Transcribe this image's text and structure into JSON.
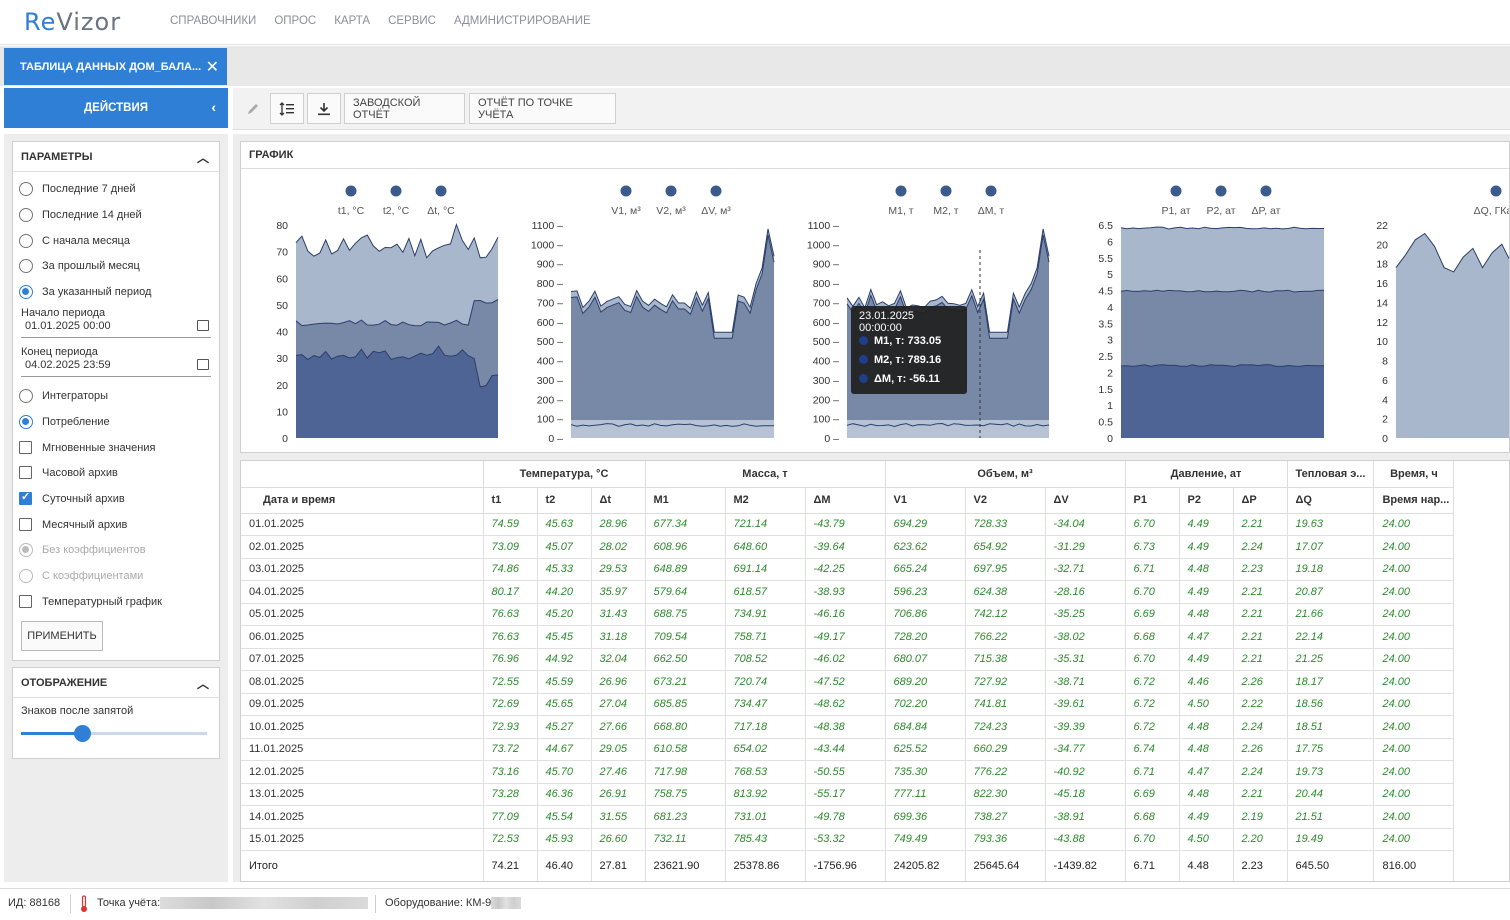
{
  "app": {
    "logo_re": "Re",
    "logo_rest": "Vizor"
  },
  "nav": [
    "Справочники",
    "Опрос",
    "Карта",
    "Сервис",
    "Администрирование"
  ],
  "tab": {
    "label": "Таблица данных ДОМ_БАЛА..."
  },
  "actions_label": "Действия",
  "toolbar": {
    "factory_report": "Заводской отчёт",
    "point_report": "Отчёт по точке учёта"
  },
  "params": {
    "title": "Параметры",
    "periods": [
      "Последние 7 дней",
      "Последние 14 дней",
      "С начала месяца",
      "За прошлый месяц",
      "За указанный период"
    ],
    "selected_period": 4,
    "start_label": "Начало периода",
    "start_value": "01.01.2025 00:00",
    "end_label": "Конец периода",
    "end_value": "04.02.2025 23:59",
    "mode": [
      "Интеграторы",
      "Потребление"
    ],
    "selected_mode": 1,
    "archives": [
      {
        "label": "Мгновенные значения",
        "checked": false
      },
      {
        "label": "Часовой архив",
        "checked": false
      },
      {
        "label": "Суточный архив",
        "checked": true
      },
      {
        "label": "Месячный архив",
        "checked": false
      }
    ],
    "coef": [
      "Без коэффициентов",
      "С коэффициентами"
    ],
    "temp_graph": "Температурный график",
    "apply": "Применить"
  },
  "display": {
    "title": "Отображение",
    "decimals_label": "Знаков после запятой",
    "decimals_value": 0.33
  },
  "chart_box_title": "График",
  "charts": [
    {
      "legend": [
        "t1, °C",
        "t2, °C",
        "Δt, °C"
      ],
      "ticks": [
        "80",
        "70",
        "60",
        "50",
        "40",
        "30",
        "20",
        "10",
        "0"
      ]
    },
    {
      "legend": [
        "V1, м³",
        "V2, м³",
        "ΔV, м³"
      ],
      "ticks": [
        "1100 –",
        "1000 –",
        "900 –",
        "800 –",
        "700 –",
        "600 –",
        "500 –",
        "400 –",
        "300 –",
        "200 –",
        "100 –",
        "0 –"
      ]
    },
    {
      "legend": [
        "M1, т",
        "M2, т",
        "ΔM, т"
      ],
      "ticks": [
        "1100 –",
        "1000 –",
        "900 –",
        "800 –",
        "700 –",
        "600 –",
        "500 –",
        "400 –",
        "300 –",
        "200 –",
        "100 –",
        "0 –"
      ]
    },
    {
      "legend": [
        "P1, ат",
        "P2, ат",
        "ΔP, ат"
      ],
      "ticks": [
        "6.5",
        "6",
        "5.5",
        "5",
        "4.5",
        "4",
        "3.5",
        "3",
        "2.5",
        "2",
        "1.5",
        "1",
        "0.5",
        "0"
      ]
    },
    {
      "legend": [
        "ΔQ, ГКал"
      ],
      "ticks": [
        "22",
        "20",
        "18",
        "16",
        "14",
        "12",
        "10",
        "8",
        "6",
        "4",
        "2",
        "0"
      ]
    }
  ],
  "tooltip": {
    "date": "23.01.2025 00:00:00",
    "lines": [
      "M1, т: 733.05",
      "M2, т: 789.16",
      "ΔM, т: -56.11"
    ]
  },
  "table": {
    "date_header": "Дата и время",
    "groups": [
      "Температура, °С",
      "Масса, т",
      "Объем, м³",
      "Давление, ат",
      "Тепловая э...",
      "Время, ч"
    ],
    "cols": [
      "t1",
      "t2",
      "Δt",
      "M1",
      "M2",
      "ΔM",
      "V1",
      "V2",
      "ΔV",
      "P1",
      "P2",
      "ΔP",
      "ΔQ",
      "Время нар..."
    ],
    "rows": [
      [
        "01.01.2025",
        "74.59",
        "45.63",
        "28.96",
        "677.34",
        "721.14",
        "-43.79",
        "694.29",
        "728.33",
        "-34.04",
        "6.70",
        "4.49",
        "2.21",
        "19.63",
        "24.00"
      ],
      [
        "02.01.2025",
        "73.09",
        "45.07",
        "28.02",
        "608.96",
        "648.60",
        "-39.64",
        "623.62",
        "654.92",
        "-31.29",
        "6.73",
        "4.49",
        "2.24",
        "17.07",
        "24.00"
      ],
      [
        "03.01.2025",
        "74.86",
        "45.33",
        "29.53",
        "648.89",
        "691.14",
        "-42.25",
        "665.24",
        "697.95",
        "-32.71",
        "6.71",
        "4.48",
        "2.23",
        "19.18",
        "24.00"
      ],
      [
        "04.01.2025",
        "80.17",
        "44.20",
        "35.97",
        "579.64",
        "618.57",
        "-38.93",
        "596.23",
        "624.38",
        "-28.16",
        "6.70",
        "4.49",
        "2.21",
        "20.87",
        "24.00"
      ],
      [
        "05.01.2025",
        "76.63",
        "45.20",
        "31.43",
        "688.75",
        "734.91",
        "-46.16",
        "706.86",
        "742.12",
        "-35.25",
        "6.69",
        "4.48",
        "2.21",
        "21.66",
        "24.00"
      ],
      [
        "06.01.2025",
        "76.63",
        "45.45",
        "31.18",
        "709.54",
        "758.71",
        "-49.17",
        "728.20",
        "766.22",
        "-38.02",
        "6.68",
        "4.47",
        "2.21",
        "22.14",
        "24.00"
      ],
      [
        "07.01.2025",
        "76.96",
        "44.92",
        "32.04",
        "662.50",
        "708.52",
        "-46.02",
        "680.07",
        "715.38",
        "-35.31",
        "6.70",
        "4.49",
        "2.21",
        "21.25",
        "24.00"
      ],
      [
        "08.01.2025",
        "72.55",
        "45.59",
        "26.96",
        "673.21",
        "720.74",
        "-47.52",
        "689.20",
        "727.92",
        "-38.71",
        "6.72",
        "4.46",
        "2.26",
        "18.17",
        "24.00"
      ],
      [
        "09.01.2025",
        "72.69",
        "45.65",
        "27.04",
        "685.85",
        "734.47",
        "-48.62",
        "702.20",
        "741.81",
        "-39.61",
        "6.72",
        "4.50",
        "2.22",
        "18.56",
        "24.00"
      ],
      [
        "10.01.2025",
        "72.93",
        "45.27",
        "27.66",
        "668.80",
        "717.18",
        "-48.38",
        "684.84",
        "724.23",
        "-39.39",
        "6.72",
        "4.48",
        "2.24",
        "18.51",
        "24.00"
      ],
      [
        "11.01.2025",
        "73.72",
        "44.67",
        "29.05",
        "610.58",
        "654.02",
        "-43.44",
        "625.52",
        "660.29",
        "-34.77",
        "6.74",
        "4.48",
        "2.26",
        "17.75",
        "24.00"
      ],
      [
        "12.01.2025",
        "73.16",
        "45.70",
        "27.46",
        "717.98",
        "768.53",
        "-50.55",
        "735.30",
        "776.22",
        "-40.92",
        "6.71",
        "4.47",
        "2.24",
        "19.73",
        "24.00"
      ],
      [
        "13.01.2025",
        "73.28",
        "46.36",
        "26.91",
        "758.75",
        "813.92",
        "-55.17",
        "777.11",
        "822.30",
        "-45.18",
        "6.69",
        "4.48",
        "2.21",
        "20.44",
        "24.00"
      ],
      [
        "14.01.2025",
        "77.09",
        "45.54",
        "31.55",
        "681.23",
        "731.01",
        "-49.78",
        "699.36",
        "738.27",
        "-38.91",
        "6.68",
        "4.49",
        "2.19",
        "21.51",
        "24.00"
      ],
      [
        "15.01.2025",
        "72.53",
        "45.93",
        "26.60",
        "732.11",
        "785.43",
        "-53.32",
        "749.49",
        "793.36",
        "-43.88",
        "6.70",
        "4.50",
        "2.20",
        "19.49",
        "24.00"
      ]
    ],
    "total": [
      "Итого",
      "74.21",
      "46.40",
      "27.81",
      "23621.90",
      "25378.86",
      "-1756.96",
      "24205.82",
      "25645.64",
      "-1439.82",
      "6.71",
      "4.48",
      "2.23",
      "645.50",
      "816.00"
    ]
  },
  "status": {
    "id": "ИД: 88168",
    "point_label": "Точка учёта:",
    "equipment": "Оборудование: КМ-9"
  },
  "colors": {
    "accent": "#2f7fd6",
    "area_light": "#a9b7cc",
    "area_mid": "#7889a8",
    "area_dark": "#4d6494",
    "value_green": "#2e8b2e"
  }
}
